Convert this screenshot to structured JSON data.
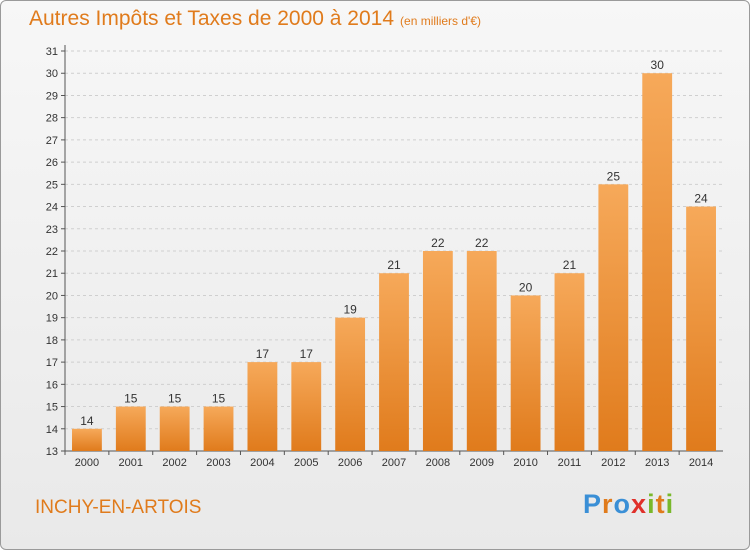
{
  "header": {
    "title": "Autres Impôts et Taxes de 2000 à 2014",
    "unit": "(en milliers d'€)"
  },
  "footer": {
    "commune": "INCHY-EN-ARTOIS",
    "brand": "Proxiti",
    "brand_colors": [
      "#3a8fd6",
      "#e07b1c",
      "#3a8fd6",
      "#e0302a",
      "#79b82b",
      "#e07b1c",
      "#79b82b"
    ]
  },
  "colors": {
    "bar_light": "#f6a95a",
    "bar_dark": "#e07b1c",
    "title": "#e07b1c",
    "grid": "#cfcfcf"
  },
  "chart_data": {
    "type": "bar",
    "title": "Autres Impôts et Taxes de 2000 à 2014",
    "xlabel": "",
    "ylabel": "",
    "categories": [
      "2000",
      "2001",
      "2002",
      "2003",
      "2004",
      "2005",
      "2006",
      "2007",
      "2008",
      "2009",
      "2010",
      "2011",
      "2012",
      "2013",
      "2014"
    ],
    "values": [
      14,
      15,
      15,
      15,
      17,
      17,
      19,
      21,
      22,
      22,
      20,
      21,
      25,
      30,
      24
    ],
    "ylim": [
      13,
      31
    ],
    "yticks": [
      13,
      14,
      15,
      16,
      17,
      18,
      19,
      20,
      21,
      22,
      23,
      24,
      25,
      26,
      27,
      28,
      29,
      30,
      31
    ],
    "grid": true,
    "data_labels": true
  }
}
